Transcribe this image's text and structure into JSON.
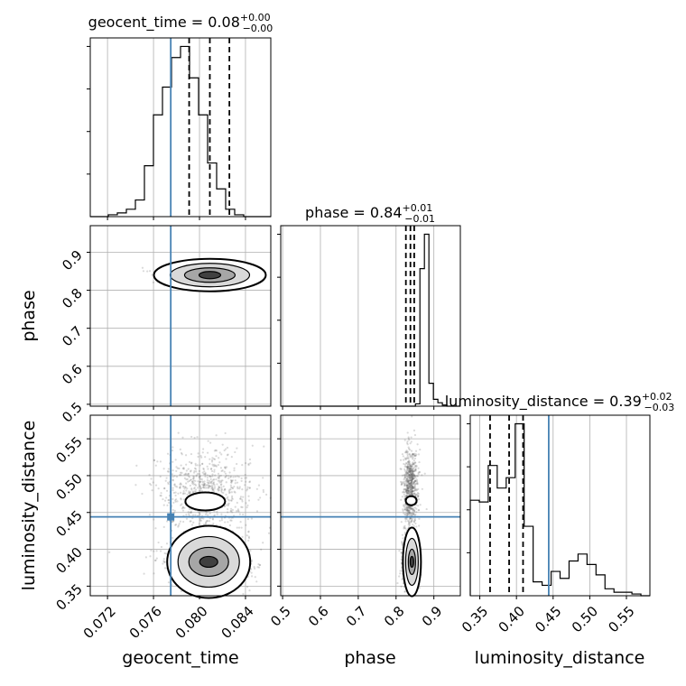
{
  "chart_data": {
    "type": "corner",
    "parameters": [
      "geocent_time",
      "phase",
      "luminosity_distance"
    ],
    "axis_labels": {
      "geocent_time": "geocent_time",
      "phase": "phase",
      "luminosity_distance": "luminosity_distance"
    },
    "ranges": {
      "geocent_time": [
        0.0705,
        0.0862
      ],
      "phase": [
        0.495,
        0.97
      ],
      "luminosity_distance": [
        0.337,
        0.582
      ]
    },
    "ticks": {
      "geocent_time": [
        0.072,
        0.076,
        0.08,
        0.084
      ],
      "phase": [
        0.5,
        0.6,
        0.7,
        0.8,
        0.9
      ],
      "luminosity_distance": [
        0.35,
        0.4,
        0.45,
        0.5,
        0.55
      ]
    },
    "tick_labels": {
      "geocent_time": [
        "0.072",
        "0.076",
        "0.080",
        "0.084"
      ],
      "phase": [
        "0.5",
        "0.6",
        "0.7",
        "0.8",
        "0.9"
      ],
      "luminosity_distance": [
        "0.35",
        "0.40",
        "0.45",
        "0.50",
        "0.55"
      ]
    },
    "truths": {
      "geocent_time": 0.0775,
      "luminosity_distance": 0.444
    },
    "titles": {
      "geocent_time": {
        "name": "geocent_time",
        "value": "0.08",
        "plus": "+0.00",
        "minus": "−0.00"
      },
      "phase": {
        "name": "phase",
        "value": "0.84",
        "plus": "+0.01",
        "minus": "−0.01"
      },
      "luminosity_distance": {
        "name": "luminosity_distance",
        "value": "0.39",
        "plus": "+0.02",
        "minus": "−0.03"
      }
    },
    "quantiles": {
      "geocent_time": [
        0.0791,
        0.0809,
        0.0826
      ],
      "phase": [
        0.826,
        0.838,
        0.848
      ],
      "luminosity_distance": [
        0.364,
        0.39,
        0.409
      ]
    },
    "hist_1d": {
      "geocent_time": {
        "edges_range": [
          0.0705,
          0.0862
        ],
        "counts": [
          0,
          0,
          2,
          4,
          8,
          18,
          55,
          110,
          140,
          172,
          184,
          150,
          110,
          58,
          30,
          8,
          2,
          0,
          0,
          0
        ]
      },
      "phase": {
        "edges_range": [
          0.495,
          0.97
        ],
        "counts": [
          0,
          0,
          0,
          0,
          0,
          0,
          0,
          0,
          0,
          0,
          0,
          0,
          0,
          0,
          0,
          0,
          0,
          0,
          0,
          0,
          0,
          0,
          0,
          0,
          0,
          0,
          0,
          0,
          0,
          0,
          2,
          120,
          150,
          20,
          6,
          3,
          1,
          0,
          0,
          0
        ]
      },
      "luminosity_distance": {
        "edges_range": [
          0.337,
          0.582
        ],
        "counts": [
          55,
          54,
          75,
          62,
          68,
          99,
          40,
          8,
          6,
          14,
          10,
          20,
          24,
          18,
          12,
          4,
          2,
          2,
          1,
          0
        ]
      }
    },
    "truth_marker": {
      "x": 0.0775,
      "y": 0.444
    }
  }
}
